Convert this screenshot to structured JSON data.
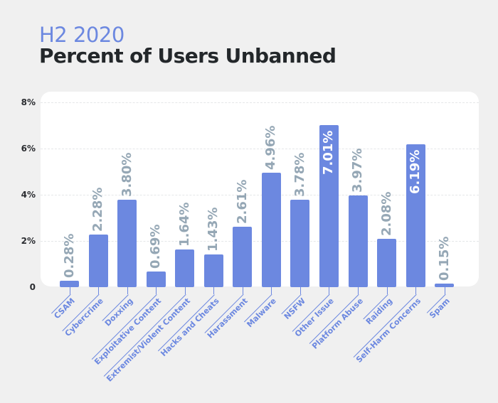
{
  "header": {
    "subtitle": "H2 2020",
    "title": "Percent of Users Unbanned"
  },
  "colors": {
    "bar": "#6c88e0",
    "accent": "#6c88e0",
    "value_label": "#95a7b5",
    "value_label_inside": "#ffffff",
    "title": "#23272a",
    "background": "#f0f0f0",
    "panel": "#ffffff"
  },
  "chart_data": {
    "type": "bar",
    "title": "Percent of Users Unbanned",
    "subtitle": "H2 2020",
    "xlabel": "",
    "ylabel": "",
    "ylim": [
      0,
      8
    ],
    "yticks": [
      0,
      2,
      4,
      6,
      8
    ],
    "ytick_labels": [
      "0",
      "2%",
      "4%",
      "6%",
      "8%"
    ],
    "grid": true,
    "legend": "none",
    "categories": [
      "CSAM",
      "Cybercrime",
      "Doxxing",
      "Exploitative Content",
      "Extremist/Violent Content",
      "Hacks and Cheats",
      "Harassment",
      "Malware",
      "NSFW",
      "Other Issue",
      "Platform Abuse",
      "Raiding",
      "Self-Harm Concerns",
      "Spam"
    ],
    "values": [
      0.28,
      2.28,
      3.8,
      0.69,
      1.64,
      1.43,
      2.61,
      4.96,
      3.78,
      7.01,
      3.97,
      2.08,
      6.19,
      0.15
    ],
    "data_labels": [
      "0.28%",
      "2.28%",
      "3.80%",
      "0.69%",
      "1.64%",
      "1.43%",
      "2.61%",
      "4.96%",
      "3.78%",
      "7.01%",
      "3.97%",
      "2.08%",
      "6.19%",
      "0.15%"
    ],
    "labels_inside": [
      false,
      false,
      false,
      false,
      false,
      false,
      false,
      false,
      false,
      true,
      false,
      false,
      true,
      false
    ]
  }
}
